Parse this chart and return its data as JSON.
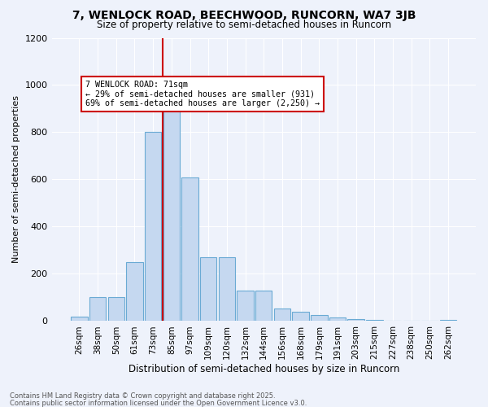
{
  "title": "7, WENLOCK ROAD, BEECHWOOD, RUNCORN, WA7 3JB",
  "subtitle": "Size of property relative to semi-detached houses in Runcorn",
  "xlabel": "Distribution of semi-detached houses by size in Runcorn",
  "ylabel": "Number of semi-detached properties",
  "categories": [
    "26sqm",
    "38sqm",
    "50sqm",
    "61sqm",
    "73sqm",
    "85sqm",
    "97sqm",
    "109sqm",
    "120sqm",
    "132sqm",
    "144sqm",
    "156sqm",
    "168sqm",
    "179sqm",
    "191sqm",
    "203sqm",
    "215sqm",
    "227sqm",
    "238sqm",
    "250sqm",
    "262sqm"
  ],
  "values": [
    20,
    100,
    100,
    250,
    800,
    930,
    610,
    270,
    270,
    130,
    130,
    55,
    40,
    25,
    15,
    8,
    5,
    3,
    2,
    1,
    5
  ],
  "bar_color": "#c5d8f0",
  "bar_edge_color": "#6aaad4",
  "property_line_color": "#cc0000",
  "property_line_idx": 4.5,
  "annotation_text": "7 WENLOCK ROAD: 71sqm\n← 29% of semi-detached houses are smaller (931)\n69% of semi-detached houses are larger (2,250) →",
  "annotation_box_color": "#cc0000",
  "annotation_bg": "#ffffff",
  "ylim": [
    0,
    1200
  ],
  "yticks": [
    0,
    200,
    400,
    600,
    800,
    1000,
    1200
  ],
  "footer1": "Contains HM Land Registry data © Crown copyright and database right 2025.",
  "footer2": "Contains public sector information licensed under the Open Government Licence v3.0.",
  "bg_color": "#eef2fb",
  "plot_bg_color": "#eef2fb",
  "title_fontsize": 10,
  "subtitle_fontsize": 8.5
}
